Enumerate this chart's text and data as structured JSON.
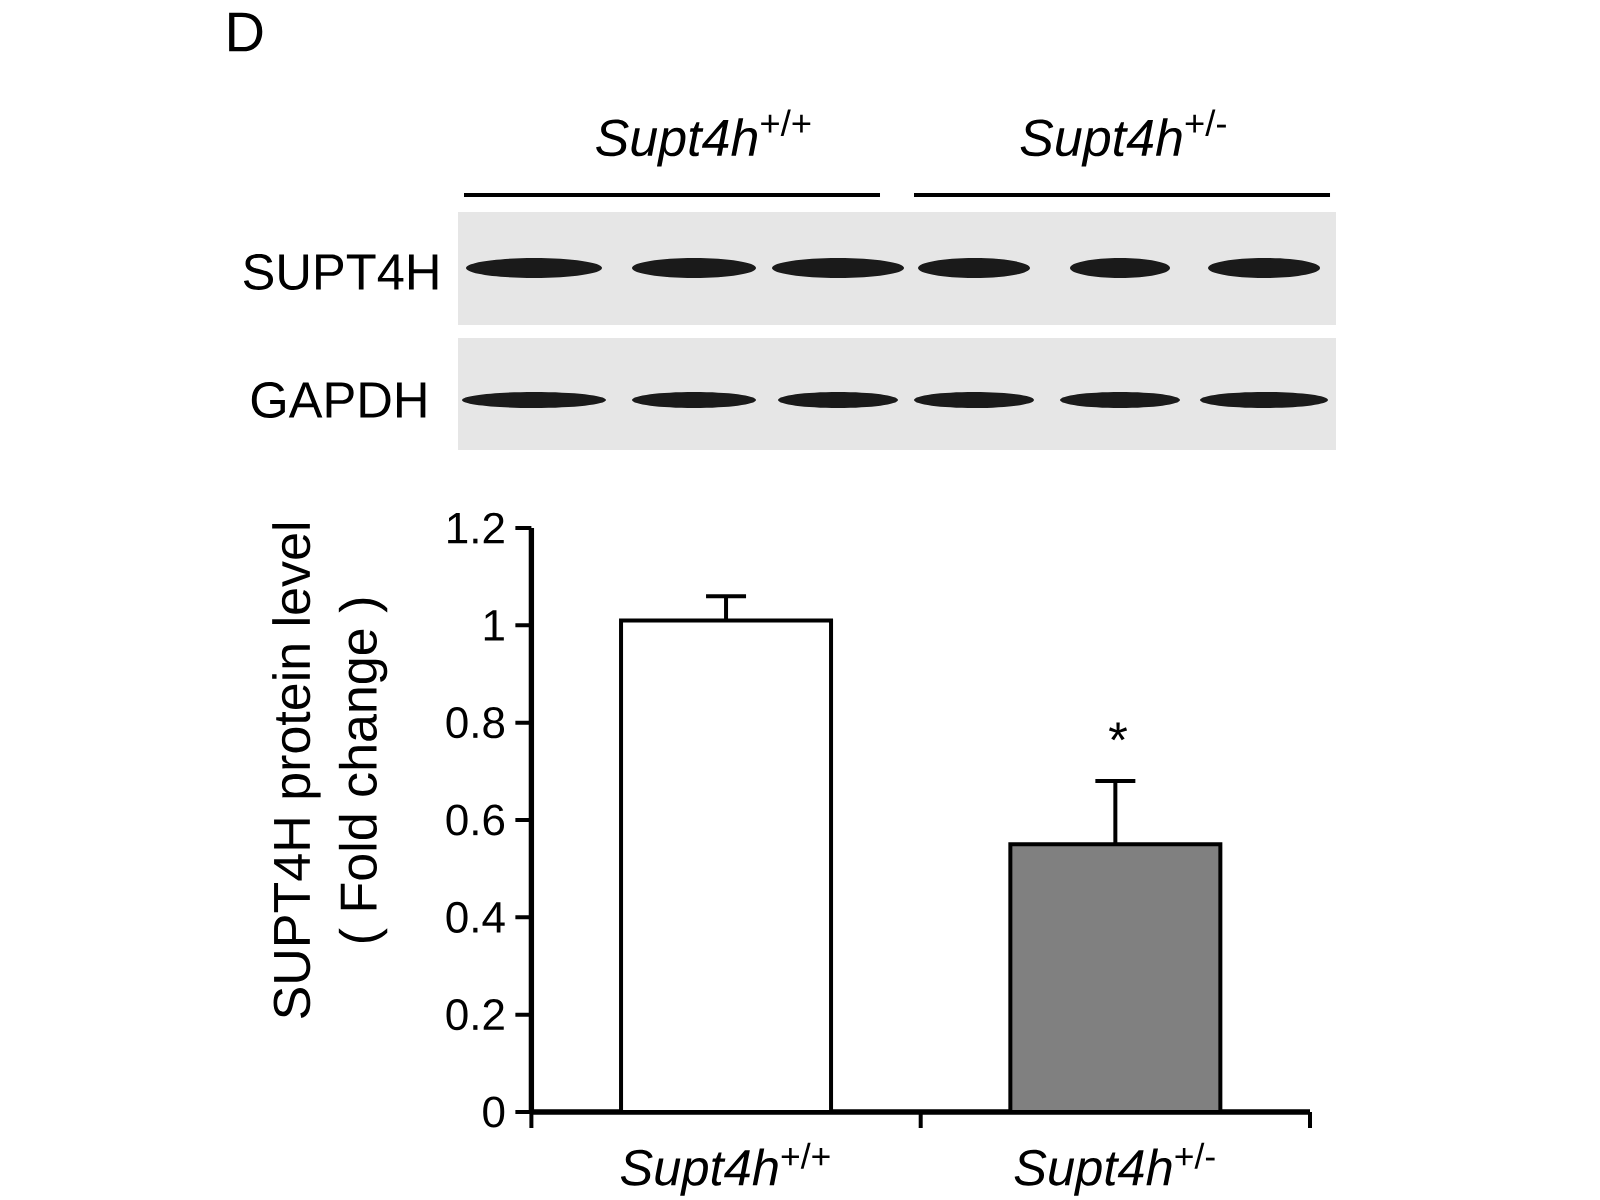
{
  "chart_data": {
    "type": "bar",
    "categories": [
      "*Supt4h*$^{+/+}$",
      "*Supt4h*$^{+/-}$"
    ],
    "values": [
      1.01,
      0.55
    ],
    "colors": [
      "#ffffff",
      "#808080"
    ],
    "errors": [
      [
        1.01,
        1.06
      ],
      [
        0.55,
        0.68
      ]
    ],
    "ylabel": "SUPT4H protein level ( Fold change )",
    "ylim": [
      0,
      1.2
    ],
    "yticks": [
      0,
      0.2,
      0.4,
      0.6,
      0.8,
      1,
      1.2
    ],
    "annotations": [
      "D",
      "*Supt4h*$^{+/+}$",
      "*Supt4h*$^{+/-}$",
      "SUPT4H",
      "GAPDH",
      "*"
    ]
  }
}
